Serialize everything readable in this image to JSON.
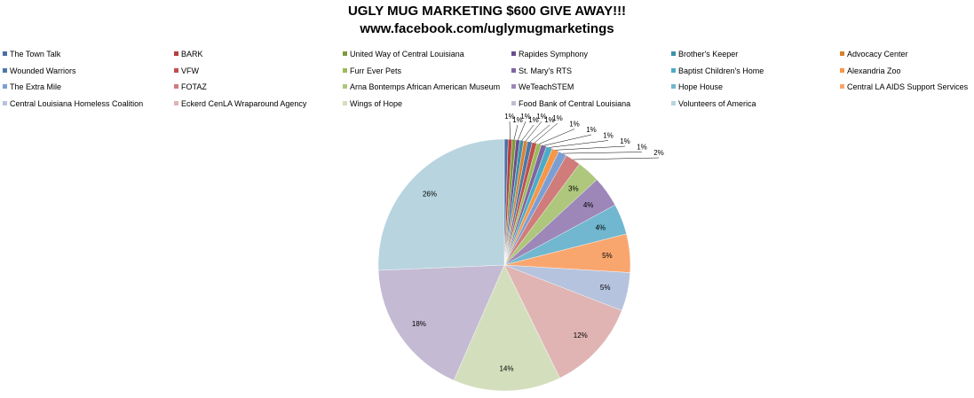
{
  "chart_data": {
    "type": "pie",
    "title": "UGLY MUG MARKETING $600 GIVE AWAY!!!",
    "subtitle": "www.facebook.com/uglymugmarketings",
    "legend_position": "top",
    "slices": [
      {
        "label": "The Town Talk",
        "value": 0.5,
        "display": "",
        "color": "#4a6fa5"
      },
      {
        "label": "BARK",
        "value": 0.5,
        "display": "1%",
        "color": "#b5403f"
      },
      {
        "label": "United Way of Central Louisiana",
        "value": 0.5,
        "display": "1%",
        "color": "#7f9a3e"
      },
      {
        "label": "Rapides Symphony",
        "value": 0.5,
        "display": "1%",
        "color": "#6a4e8d"
      },
      {
        "label": "Brother's Keeper",
        "value": 0.5,
        "display": "1%",
        "color": "#3c91a8"
      },
      {
        "label": "Advocacy Center",
        "value": 0.5,
        "display": "1%",
        "color": "#d9802f"
      },
      {
        "label": "Wounded Warriors",
        "value": 0.6,
        "display": "1%",
        "color": "#4c78a8"
      },
      {
        "label": "VFW",
        "value": 0.6,
        "display": "1%",
        "color": "#c0504d"
      },
      {
        "label": "Furr Ever Pets",
        "value": 0.6,
        "display": "1%",
        "color": "#9bbb59"
      },
      {
        "label": "St. Mary's RTS",
        "value": 0.7,
        "display": "1%",
        "color": "#8064a2"
      },
      {
        "label": "Baptist Children's Home",
        "value": 0.8,
        "display": "1%",
        "color": "#4bacc6"
      },
      {
        "label": "Alexandria Zoo",
        "value": 0.9,
        "display": "1%",
        "color": "#f79646"
      },
      {
        "label": "The Extra Mile",
        "value": 1.1,
        "display": "1%",
        "color": "#7c9fd3"
      },
      {
        "label": "FOTAZ",
        "value": 2.0,
        "display": "2%",
        "color": "#d07c7a"
      },
      {
        "label": "Arna Bontemps African American Museum",
        "value": 3.0,
        "display": "3%",
        "color": "#aec77c"
      },
      {
        "label": "WeTeachSTEM",
        "value": 4.0,
        "display": "4%",
        "color": "#9c87b8"
      },
      {
        "label": "Hope House",
        "value": 4.0,
        "display": "4%",
        "color": "#71b7cf"
      },
      {
        "label": "Central LA AIDS Support Services",
        "value": 5.0,
        "display": "5%",
        "color": "#f9a66e"
      },
      {
        "label": "Central Louisiana Homeless Coalition",
        "value": 5.0,
        "display": "5%",
        "color": "#b6c3de"
      },
      {
        "label": "Eckerd CenLA Wraparound Agency",
        "value": 12.0,
        "display": "12%",
        "color": "#dfb4b3"
      },
      {
        "label": "Wings of Hope",
        "value": 14.0,
        "display": "14%",
        "color": "#d3dfbc"
      },
      {
        "label": "Food Bank of Central Louisiana",
        "value": 18.0,
        "display": "18%",
        "color": "#c5bad3"
      },
      {
        "label": "Volunteers of America",
        "value": 26.0,
        "display": "26%",
        "color": "#b7d4df"
      }
    ]
  }
}
